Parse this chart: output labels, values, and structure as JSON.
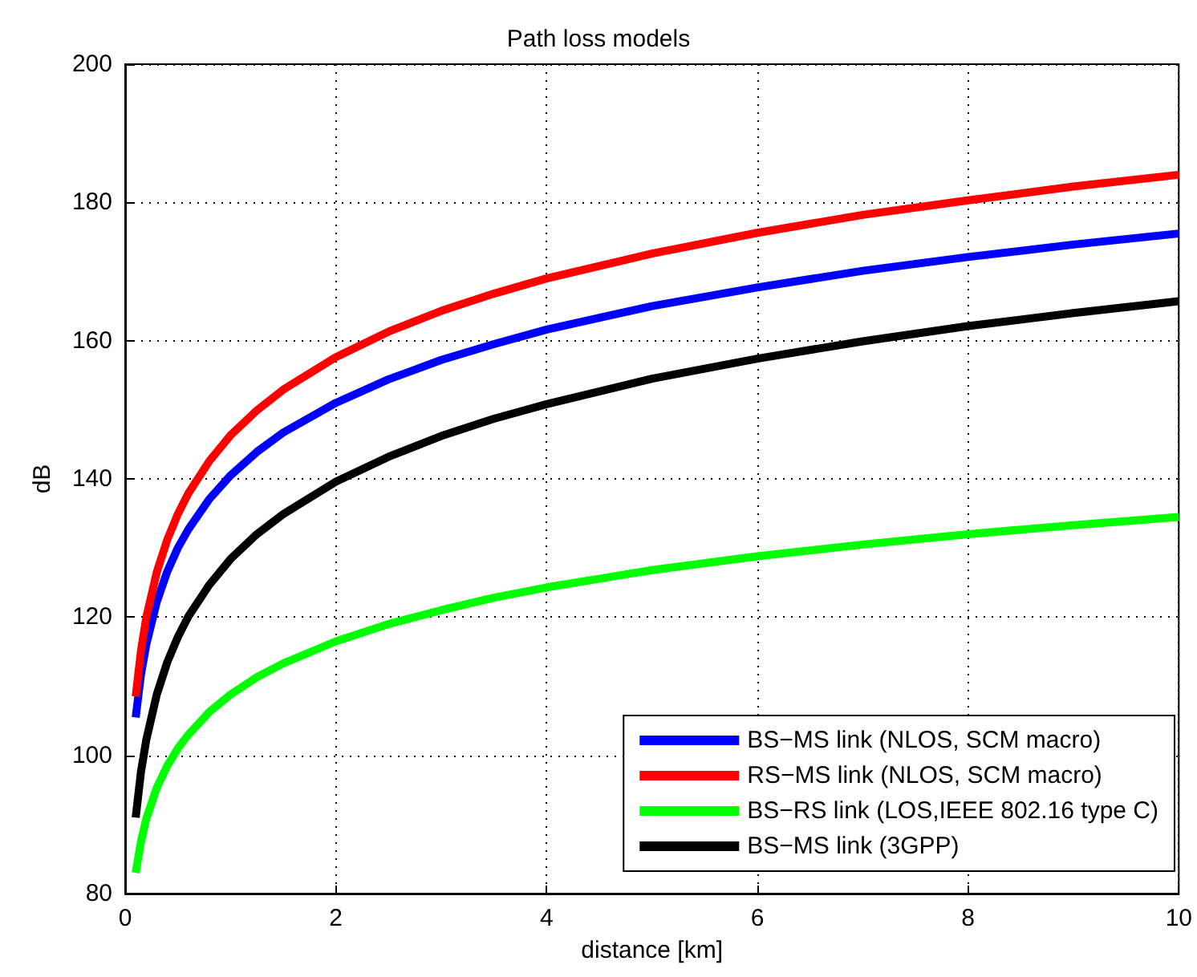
{
  "chart_data": {
    "type": "line",
    "title": "Path loss models",
    "xlabel": "distance [km]",
    "ylabel": "dB",
    "x": [
      0.1,
      0.15,
      0.2,
      0.3,
      0.4,
      0.5,
      0.6,
      0.8,
      1,
      1.25,
      1.5,
      2,
      2.5,
      3,
      3.5,
      4,
      5,
      6,
      7,
      8,
      9,
      10
    ],
    "series": [
      {
        "name": "BS−MS link (NLOS, SCM macro)",
        "color": "#0000ff",
        "values": [
          105.5,
          111.7,
          116.0,
          122.2,
          126.6,
          130.0,
          132.7,
          137.1,
          140.5,
          143.9,
          146.7,
          151.0,
          154.4,
          157.2,
          159.5,
          161.6,
          165.0,
          167.7,
          170.1,
          172.1,
          173.9,
          175.5
        ]
      },
      {
        "name": "RS−MS link (NLOS, SCM macro)",
        "color": "#ff0000",
        "values": [
          108.5,
          115.1,
          119.9,
          126.5,
          131.2,
          134.9,
          137.9,
          142.6,
          146.3,
          149.9,
          152.9,
          157.6,
          161.3,
          164.3,
          166.8,
          169.0,
          172.6,
          175.6,
          178.2,
          180.3,
          182.3,
          184.0
        ]
      },
      {
        "name": "BS−RS link (LOS,IEEE 802.16 type C)",
        "color": "#00ff00",
        "values": [
          83.0,
          87.5,
          90.8,
          95.3,
          98.5,
          101.0,
          103.0,
          106.3,
          108.8,
          111.3,
          113.3,
          116.5,
          119.0,
          121.0,
          122.8,
          124.3,
          126.8,
          128.8,
          130.5,
          132.0,
          133.3,
          134.5
        ]
      },
      {
        "name": "BS−MS link (3GPP)",
        "color": "#000000",
        "values": [
          91.0,
          97.6,
          102.2,
          108.8,
          113.5,
          117.1,
          120.1,
          124.7,
          128.4,
          132.0,
          134.9,
          139.6,
          143.2,
          146.2,
          148.7,
          150.8,
          154.5,
          157.4,
          159.9,
          162.1,
          164.0,
          165.7
        ]
      }
    ],
    "xlim": [
      0,
      10
    ],
    "xticks": [
      0,
      2,
      4,
      6,
      8,
      10
    ],
    "ylim": [
      80,
      200
    ],
    "yticks": [
      80,
      100,
      120,
      140,
      160,
      180,
      200
    ],
    "grid": true,
    "legend": "bottom right",
    "marker": "none",
    "line_style": "solid"
  }
}
